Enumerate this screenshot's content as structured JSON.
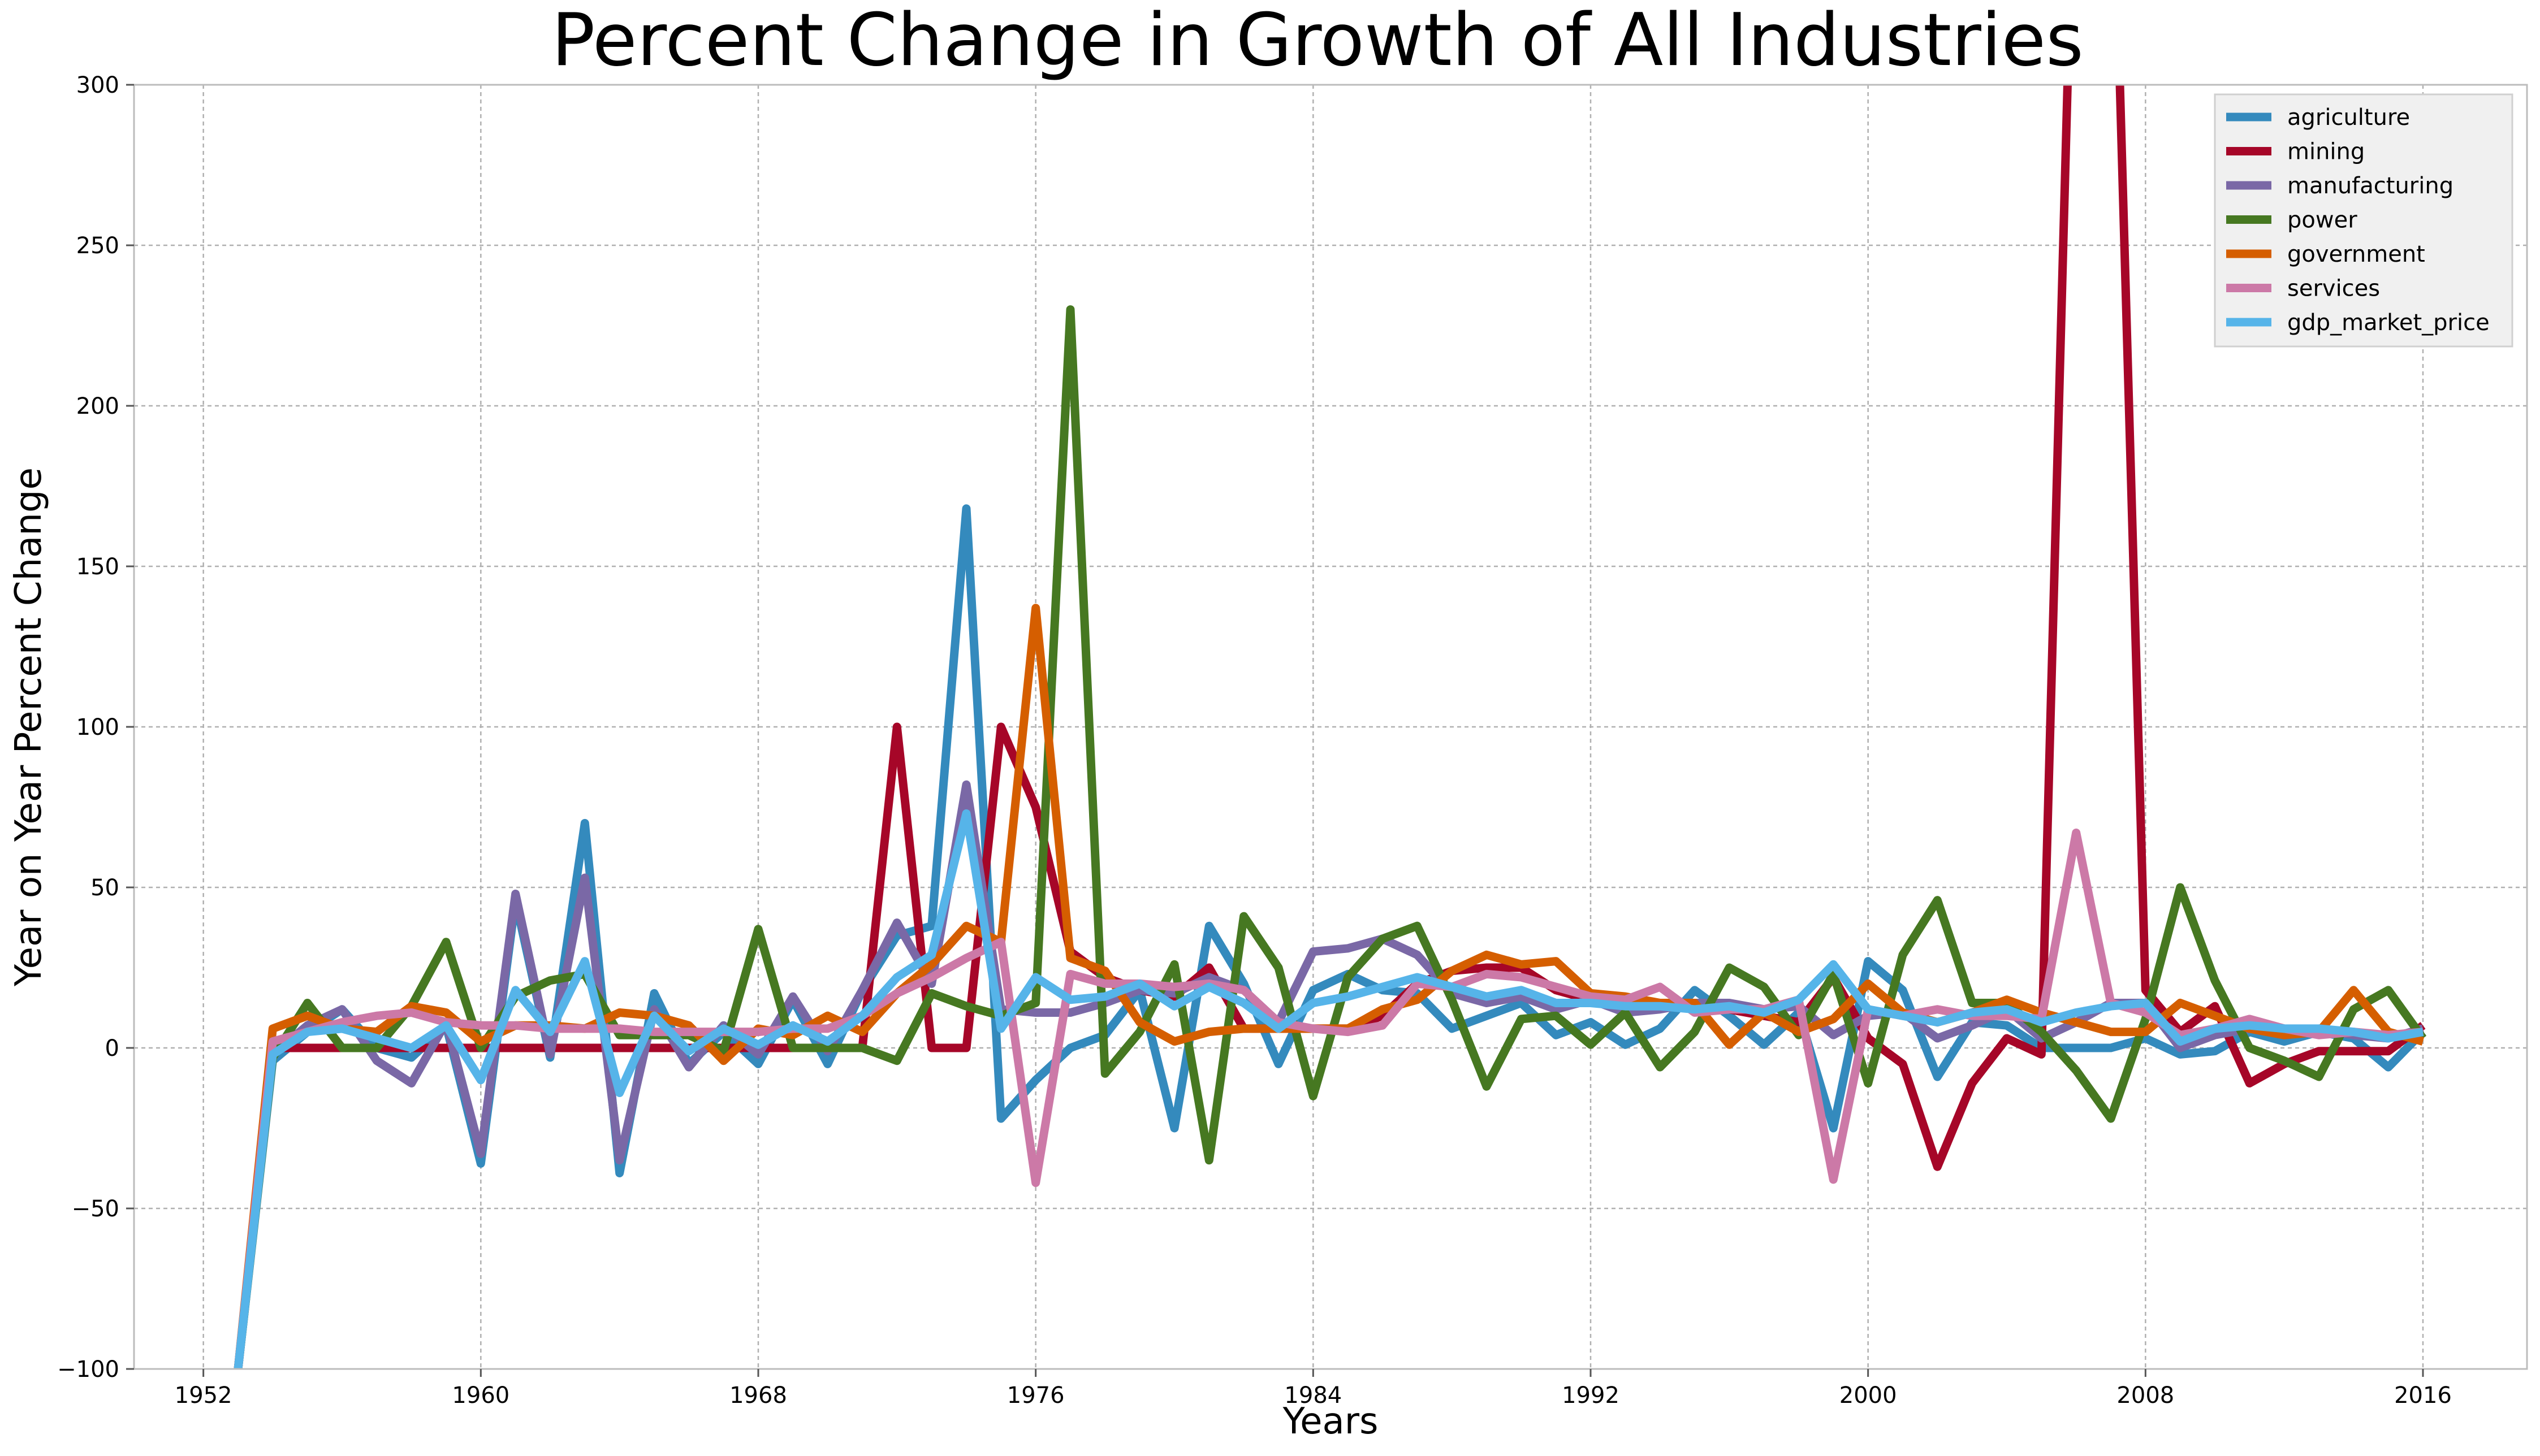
{
  "chart_data": {
    "type": "line",
    "title": "Percent Change in Growth of All Industries",
    "xlabel": "Years",
    "ylabel": "Year on Year Percent Change",
    "xlim": [
      1950,
      2019
    ],
    "ylim": [
      -100,
      300
    ],
    "x_ticks": [
      1952,
      1960,
      1968,
      1976,
      1984,
      1992,
      2000,
      2008,
      2016
    ],
    "y_ticks": [
      -100,
      -50,
      0,
      50,
      100,
      150,
      200,
      250,
      300
    ],
    "grid": true,
    "legend": "top-right",
    "x": [
      1953,
      1954,
      1955,
      1956,
      1957,
      1958,
      1959,
      1960,
      1961,
      1962,
      1963,
      1964,
      1965,
      1966,
      1967,
      1968,
      1969,
      1970,
      1971,
      1972,
      1973,
      1974,
      1975,
      1976,
      1977,
      1978,
      1979,
      1980,
      1981,
      1982,
      1983,
      1984,
      1985,
      1986,
      1987,
      1988,
      1989,
      1990,
      1991,
      1992,
      1993,
      1994,
      1995,
      1996,
      1997,
      1998,
      1999,
      2000,
      2001,
      2002,
      2003,
      2004,
      2005,
      2006,
      2007,
      2008,
      2009,
      2010,
      2011,
      2012,
      2013,
      2014,
      2015,
      2016
    ],
    "series": [
      {
        "name": "agriculture",
        "color": "#348ABD",
        "values": [
          -100,
          -4,
          5,
          12,
          0,
          -3,
          7,
          -36,
          46,
          -3,
          70,
          -39,
          17,
          -5,
          5,
          -5,
          15,
          -5,
          18,
          35,
          38,
          168,
          -22,
          -10,
          0,
          4,
          18,
          -25,
          38,
          20,
          -5,
          18,
          23,
          18,
          17,
          6,
          10,
          14,
          4,
          8,
          1,
          6,
          18,
          10,
          1,
          11,
          -25,
          27,
          18,
          -9,
          8,
          7,
          0,
          0,
          0,
          3,
          -2,
          -1,
          5,
          2,
          5,
          3,
          -6,
          5
        ]
      },
      {
        "name": "mining",
        "color": "#A60628",
        "values": [
          -100,
          0,
          0,
          0,
          0,
          0,
          0,
          0,
          0,
          0,
          0,
          0,
          0,
          0,
          0,
          0,
          0,
          0,
          0,
          100,
          0,
          0,
          100,
          75,
          30,
          22,
          18,
          16,
          25,
          6,
          6,
          6,
          6,
          10,
          20,
          24,
          25,
          25,
          18,
          15,
          13,
          13,
          13,
          12,
          10,
          8,
          22,
          3,
          -5,
          -37,
          -11,
          3,
          -2,
          400,
          400,
          18,
          5,
          13,
          -11,
          -5,
          -1,
          -1,
          -1,
          7
        ]
      },
      {
        "name": "manufacturing",
        "color": "#7A68A6",
        "values": [
          -100,
          -2,
          7,
          12,
          -4,
          -11,
          8,
          -33,
          48,
          -2,
          53,
          -35,
          12,
          -6,
          7,
          -2,
          16,
          -1,
          18,
          39,
          20,
          82,
          12,
          11,
          11,
          14,
          18,
          17,
          22,
          18,
          8,
          30,
          31,
          34,
          29,
          17,
          14,
          16,
          12,
          15,
          11,
          12,
          14,
          14,
          12,
          13,
          4,
          10,
          11,
          3,
          7,
          12,
          3,
          8,
          14,
          14,
          0,
          4,
          6,
          4,
          6,
          4,
          3,
          6
        ]
      },
      {
        "name": "power",
        "color": "#467821",
        "values": [
          -100,
          -3,
          14,
          0,
          0,
          13,
          33,
          0,
          16,
          21,
          23,
          4,
          4,
          4,
          -1,
          37,
          0,
          0,
          0,
          -4,
          17,
          13,
          10,
          14,
          230,
          -8,
          5,
          26,
          -35,
          41,
          25,
          -15,
          22,
          34,
          38,
          15,
          -12,
          9,
          10,
          1,
          11,
          -6,
          5,
          25,
          19,
          4,
          23,
          -11,
          29,
          46,
          14,
          14,
          5,
          -7,
          -22,
          9,
          50,
          21,
          0,
          -4,
          -9,
          12,
          18,
          3
        ]
      },
      {
        "name": "government",
        "color": "#D55E00",
        "values": [
          -100,
          6,
          10,
          6,
          5,
          13,
          11,
          2,
          7,
          7,
          6,
          11,
          10,
          7,
          -4,
          6,
          4,
          10,
          5,
          17,
          26,
          38,
          33,
          137,
          28,
          24,
          8,
          2,
          5,
          6,
          6,
          6,
          6,
          12,
          15,
          24,
          29,
          26,
          27,
          17,
          16,
          14,
          14,
          1,
          11,
          5,
          9,
          20,
          11,
          8,
          11,
          15,
          11,
          8,
          5,
          5,
          14,
          10,
          6,
          4,
          5,
          18,
          5,
          2
        ]
      },
      {
        "name": "services",
        "color": "#CC79A7",
        "values": [
          -100,
          2,
          5,
          8,
          10,
          11,
          8,
          7,
          7,
          6,
          6,
          6,
          5,
          5,
          5,
          5,
          6,
          6,
          10,
          17,
          22,
          28,
          33,
          -42,
          23,
          20,
          20,
          19,
          20,
          18,
          8,
          6,
          5,
          7,
          20,
          19,
          23,
          22,
          19,
          16,
          15,
          19,
          11,
          12,
          12,
          15,
          -41,
          12,
          10,
          12,
          10,
          10,
          9,
          67,
          14,
          11,
          4,
          6,
          9,
          6,
          4,
          5,
          4,
          5
        ]
      },
      {
        "name": "gdp_market_price",
        "color": "#56B4E9",
        "values": [
          -100,
          -2,
          5,
          6,
          3,
          0,
          7,
          -10,
          18,
          5,
          27,
          -14,
          10,
          -1,
          6,
          1,
          7,
          2,
          10,
          22,
          29,
          73,
          6,
          22,
          15,
          16,
          20,
          13,
          19,
          14,
          6,
          14,
          16,
          19,
          22,
          19,
          16,
          18,
          14,
          14,
          13,
          13,
          12,
          13,
          11,
          15,
          26,
          12,
          10,
          8,
          11,
          12,
          8,
          11,
          13,
          14,
          2,
          6,
          7,
          6,
          6,
          5,
          3,
          5
        ]
      }
    ]
  }
}
